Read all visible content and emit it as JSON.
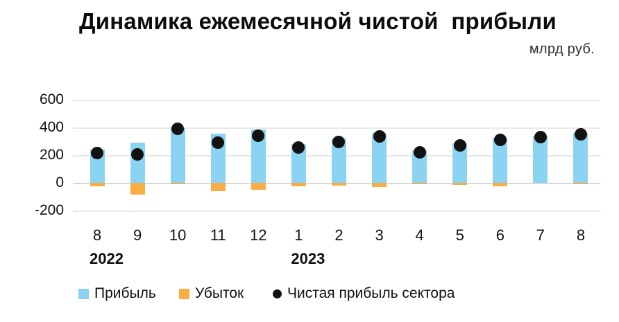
{
  "header": {
    "title": "Динамика ежемесячной чистой  прибыли",
    "subtitle": "млрд руб."
  },
  "chart_data": {
    "type": "bar",
    "title": "Динамика ежемесячной чистой прибыли",
    "unit_label": "млрд руб.",
    "categories": [
      "8",
      "9",
      "10",
      "11",
      "12",
      "1",
      "2",
      "3",
      "4",
      "5",
      "6",
      "7",
      "8"
    ],
    "year_markers": [
      {
        "index": 0,
        "label": "2022"
      },
      {
        "index": 5,
        "label": "2023"
      }
    ],
    "y_ticks": [
      600,
      400,
      200,
      0,
      -200
    ],
    "ylim": [
      -260,
      660
    ],
    "grid": true,
    "legend_position": "bottom",
    "series": [
      {
        "name": "Прибыль",
        "type": "bar",
        "color": "#8BD3F3",
        "values": [
          240,
          290,
          395,
          355,
          385,
          280,
          320,
          360,
          235,
          285,
          325,
          340,
          360
        ]
      },
      {
        "name": "Убыток",
        "type": "bar",
        "color": "#F9AE43",
        "values": [
          -25,
          -85,
          -10,
          -60,
          -50,
          -25,
          -20,
          -30,
          -10,
          -15,
          -25,
          0,
          -10
        ]
      },
      {
        "name": "Чистая прибыль сектора",
        "type": "scatter",
        "color": "#121212",
        "values": [
          215,
          205,
          390,
          290,
          340,
          255,
          295,
          335,
          220,
          270,
          310,
          330,
          350
        ]
      }
    ]
  },
  "legend": {
    "items": [
      {
        "label": "Прибыль",
        "color": "#8BD3F3",
        "marker": "square"
      },
      {
        "label": "Убыток",
        "color": "#F9AE43",
        "marker": "square"
      },
      {
        "label": "Чистая прибыль сектора",
        "color": "#121212",
        "marker": "dot"
      }
    ]
  },
  "colors": {
    "profit": "#8BD3F3",
    "loss": "#F9AE43",
    "net": "#121212",
    "grid": "#e7e7e7",
    "background": "#ffffff",
    "text": "#101010"
  }
}
